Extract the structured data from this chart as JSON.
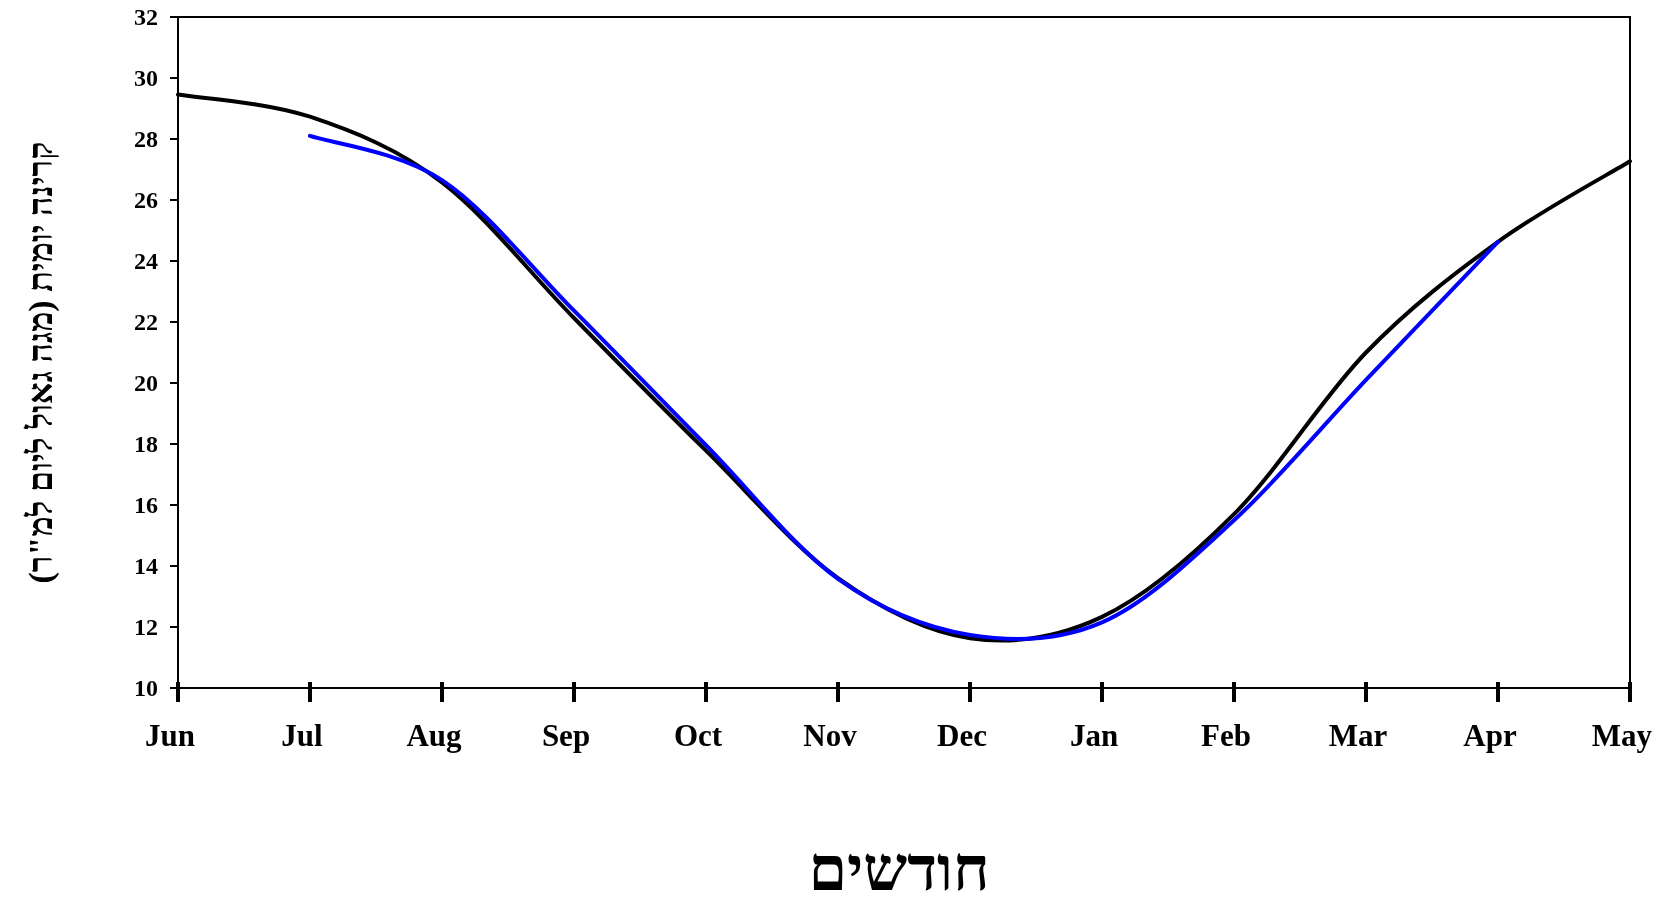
{
  "chart_data": {
    "type": "line",
    "xlabel": "חודשים",
    "ylabel": "קרינה יומית (מגה גאול ליום למ\"ר)",
    "categories": [
      "Jun",
      "Jul",
      "Aug",
      "Sep",
      "Oct",
      "Nov",
      "Dec",
      "Jan",
      "Feb",
      "Mar",
      "Apr",
      "May"
    ],
    "ylim": [
      10,
      32
    ],
    "yticks": [
      10,
      12,
      14,
      16,
      18,
      20,
      22,
      24,
      26,
      28,
      30,
      32
    ],
    "grid": false,
    "line_style": "solid",
    "series": [
      {
        "color": "#000000",
        "values": [
          29.46,
          28.73,
          26.58,
          22.13,
          17.78,
          13.6,
          11.63,
          12.33,
          15.7,
          21.0,
          24.63,
          27.27
        ]
      },
      {
        "color": "#0000ff",
        "values": [
          null,
          28.1,
          26.65,
          22.37,
          17.96,
          13.58,
          11.74,
          12.15,
          15.5,
          20.1,
          24.63,
          null
        ]
      }
    ]
  }
}
